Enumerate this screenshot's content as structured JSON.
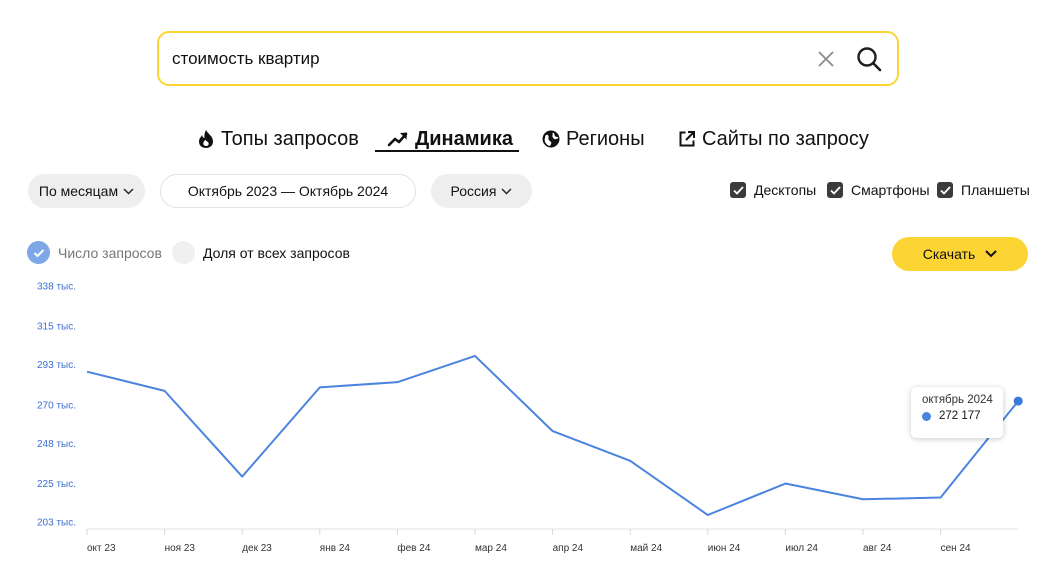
{
  "search": {
    "value": "стоимость квартир"
  },
  "tabs": [
    {
      "label": "Топы запросов",
      "icon": "fire-icon"
    },
    {
      "label": "Динамика",
      "icon": "trend-arrow-icon",
      "active": true
    },
    {
      "label": "Регионы",
      "icon": "globe-icon"
    },
    {
      "label": "Сайты по запросу",
      "icon": "external-link-icon"
    }
  ],
  "filters": {
    "period": "По месяцам",
    "range": "Октябрь 2023 — Октябрь 2024",
    "region": "Россия"
  },
  "devices": [
    {
      "label": "Десктопы",
      "checked": true
    },
    {
      "label": "Смартфоны",
      "checked": true
    },
    {
      "label": "Планшеты",
      "checked": true
    }
  ],
  "metrics": {
    "count_label": "Число запросов",
    "share_label": "Доля от всех запросов"
  },
  "download_label": "Скачать",
  "colors": {
    "accent": "#fcd534",
    "line": "#4a84df",
    "axis_label": "#3b6fd1"
  },
  "chart_data": {
    "type": "line",
    "x": [
      "окт 23",
      "ноя 23",
      "дек 23",
      "янв 24",
      "фев 24",
      "мар 24",
      "апр 24",
      "май 24",
      "июн 24",
      "июл 24",
      "авг 24",
      "сен 24",
      "окт 24"
    ],
    "x_tick_labels": [
      "окт 23",
      "ноя 23",
      "дек 23",
      "янв 24",
      "фев 24",
      "мар 24",
      "апр 24",
      "май 24",
      "июн 24",
      "июл 24",
      "авг 24",
      "сен 24"
    ],
    "series": [
      {
        "values": [
          289000,
          278000,
          229000,
          280000,
          283000,
          298000,
          255000,
          238000,
          207000,
          225000,
          216000,
          217000,
          272177
        ]
      }
    ],
    "y_tick_labels": [
      "338 тыс.",
      "315 тыс.",
      "293 тыс.",
      "270 тыс.",
      "248 тыс.",
      "225 тыс.",
      "203 тыс."
    ],
    "y_ticks": [
      338000,
      315000,
      293000,
      270000,
      248000,
      225000,
      203000
    ],
    "ylim": [
      203000,
      338000
    ],
    "tooltip": {
      "title": "октябрь 2024",
      "value": "272 177"
    }
  }
}
